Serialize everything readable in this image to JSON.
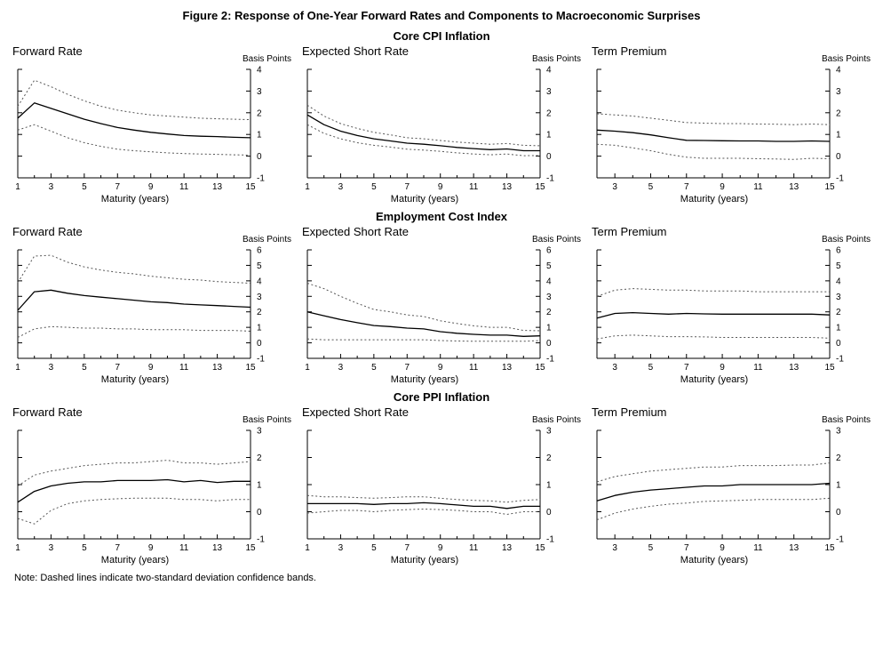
{
  "figure_title": "Figure 2: Response of One-Year Forward Rates and Components to Macroeconomic Surprises",
  "note": "Note: Dashed lines indicate two-standard deviation confidence bands.",
  "rows": [
    {
      "title": "Core CPI Inflation"
    },
    {
      "title": "Employment Cost Index"
    },
    {
      "title": "Core PPI Inflation"
    }
  ],
  "chart_data": [
    {
      "type": "line",
      "group": "Core CPI Inflation",
      "title": "Forward Rate",
      "xlabel": "Maturity (years)",
      "ylabel": "Basis Points",
      "xlim": [
        1,
        15
      ],
      "ylim": [
        -1,
        4
      ],
      "xticks": [
        1,
        3,
        5,
        7,
        9,
        11,
        13,
        15
      ],
      "yticks": [
        -1,
        0,
        1,
        2,
        3,
        4
      ],
      "x": [
        1,
        2,
        3,
        4,
        5,
        6,
        7,
        8,
        9,
        10,
        11,
        12,
        13,
        14,
        15
      ],
      "series": [
        {
          "name": "estimate",
          "style": "solid",
          "values": [
            1.75,
            2.45,
            2.2,
            1.95,
            1.7,
            1.5,
            1.32,
            1.2,
            1.1,
            1.02,
            0.95,
            0.92,
            0.9,
            0.87,
            0.85
          ]
        },
        {
          "name": "upper-confidence-band",
          "style": "dashed",
          "values": [
            2.3,
            3.5,
            3.2,
            2.85,
            2.55,
            2.3,
            2.12,
            2.0,
            1.9,
            1.85,
            1.8,
            1.75,
            1.72,
            1.7,
            1.68
          ]
        },
        {
          "name": "lower-confidence-band",
          "style": "dashed",
          "values": [
            1.2,
            1.45,
            1.15,
            0.85,
            0.62,
            0.45,
            0.32,
            0.25,
            0.2,
            0.15,
            0.12,
            0.1,
            0.08,
            0.06,
            0.05
          ]
        }
      ]
    },
    {
      "type": "line",
      "group": "Core CPI Inflation",
      "title": "Expected Short Rate",
      "xlabel": "Maturity (years)",
      "ylabel": "Basis Points",
      "xlim": [
        1,
        15
      ],
      "ylim": [
        -1,
        4
      ],
      "xticks": [
        1,
        3,
        5,
        7,
        9,
        11,
        13,
        15
      ],
      "yticks": [
        -1,
        0,
        1,
        2,
        3,
        4
      ],
      "x": [
        1,
        2,
        3,
        4,
        5,
        6,
        7,
        8,
        9,
        10,
        11,
        12,
        13,
        14,
        15
      ],
      "series": [
        {
          "name": "estimate",
          "style": "solid",
          "values": [
            1.9,
            1.45,
            1.15,
            0.95,
            0.8,
            0.7,
            0.6,
            0.55,
            0.48,
            0.4,
            0.35,
            0.3,
            0.33,
            0.25,
            0.25
          ]
        },
        {
          "name": "upper-confidence-band",
          "style": "dashed",
          "values": [
            2.35,
            1.85,
            1.5,
            1.28,
            1.1,
            0.98,
            0.85,
            0.8,
            0.72,
            0.65,
            0.6,
            0.55,
            0.58,
            0.5,
            0.48
          ]
        },
        {
          "name": "lower-confidence-band",
          "style": "dashed",
          "values": [
            1.45,
            1.05,
            0.8,
            0.62,
            0.5,
            0.42,
            0.32,
            0.28,
            0.22,
            0.15,
            0.1,
            0.06,
            0.1,
            0.02,
            0.03
          ]
        }
      ]
    },
    {
      "type": "line",
      "group": "Core CPI Inflation",
      "title": "Term Premium",
      "xlabel": "Maturity (years)",
      "ylabel": "Basis Points",
      "xlim": [
        2,
        15
      ],
      "ylim": [
        -1,
        4
      ],
      "xticks": [
        3,
        5,
        7,
        9,
        11,
        13,
        15
      ],
      "yticks": [
        -1,
        0,
        1,
        2,
        3,
        4
      ],
      "x": [
        2,
        3,
        4,
        5,
        6,
        7,
        8,
        9,
        10,
        11,
        12,
        13,
        14,
        15
      ],
      "series": [
        {
          "name": "estimate",
          "style": "solid",
          "values": [
            1.2,
            1.15,
            1.08,
            0.98,
            0.85,
            0.73,
            0.72,
            0.71,
            0.7,
            0.7,
            0.68,
            0.68,
            0.7,
            0.68
          ]
        },
        {
          "name": "upper-confidence-band",
          "style": "dashed",
          "values": [
            1.95,
            1.9,
            1.85,
            1.75,
            1.65,
            1.55,
            1.52,
            1.5,
            1.5,
            1.48,
            1.47,
            1.45,
            1.48,
            1.45
          ]
        },
        {
          "name": "lower-confidence-band",
          "style": "dashed",
          "values": [
            0.55,
            0.5,
            0.38,
            0.25,
            0.08,
            -0.05,
            -0.1,
            -0.1,
            -0.1,
            -0.12,
            -0.13,
            -0.15,
            -0.1,
            -0.12
          ]
        }
      ]
    },
    {
      "type": "line",
      "group": "Employment Cost Index",
      "title": "Forward Rate",
      "xlabel": "Maturity (years)",
      "ylabel": "Basis Points",
      "xlim": [
        1,
        15
      ],
      "ylim": [
        -1,
        6
      ],
      "xticks": [
        1,
        3,
        5,
        7,
        9,
        11,
        13,
        15
      ],
      "yticks": [
        -1,
        0,
        1,
        2,
        3,
        4,
        5,
        6
      ],
      "x": [
        1,
        2,
        3,
        4,
        5,
        6,
        7,
        8,
        9,
        10,
        11,
        12,
        13,
        14,
        15
      ],
      "series": [
        {
          "name": "estimate",
          "style": "solid",
          "values": [
            2.1,
            3.3,
            3.4,
            3.2,
            3.05,
            2.95,
            2.85,
            2.75,
            2.65,
            2.6,
            2.5,
            2.45,
            2.4,
            2.35,
            2.3
          ]
        },
        {
          "name": "upper-confidence-band",
          "style": "dashed",
          "values": [
            3.9,
            5.6,
            5.65,
            5.2,
            4.9,
            4.7,
            4.55,
            4.45,
            4.3,
            4.2,
            4.1,
            4.05,
            3.95,
            3.9,
            3.85
          ]
        },
        {
          "name": "lower-confidence-band",
          "style": "dashed",
          "values": [
            0.35,
            0.9,
            1.05,
            1.0,
            0.95,
            0.95,
            0.9,
            0.9,
            0.85,
            0.85,
            0.85,
            0.8,
            0.8,
            0.8,
            0.75
          ]
        }
      ]
    },
    {
      "type": "line",
      "group": "Employment Cost Index",
      "title": "Expected Short Rate",
      "xlabel": "Maturity (years)",
      "ylabel": "Basis Points",
      "xlim": [
        1,
        15
      ],
      "ylim": [
        -1,
        6
      ],
      "xticks": [
        1,
        3,
        5,
        7,
        9,
        11,
        13,
        15
      ],
      "yticks": [
        -1,
        0,
        1,
        2,
        3,
        4,
        5,
        6
      ],
      "x": [
        1,
        2,
        3,
        4,
        5,
        6,
        7,
        8,
        9,
        10,
        11,
        12,
        13,
        14,
        15
      ],
      "series": [
        {
          "name": "estimate",
          "style": "solid",
          "values": [
            2.0,
            1.75,
            1.5,
            1.3,
            1.12,
            1.05,
            0.95,
            0.9,
            0.72,
            0.62,
            0.55,
            0.5,
            0.5,
            0.42,
            0.45
          ]
        },
        {
          "name": "upper-confidence-band",
          "style": "dashed",
          "values": [
            3.85,
            3.5,
            3.0,
            2.55,
            2.15,
            2.0,
            1.8,
            1.7,
            1.42,
            1.25,
            1.1,
            1.0,
            1.0,
            0.8,
            0.78
          ]
        },
        {
          "name": "lower-confidence-band",
          "style": "dashed",
          "values": [
            0.25,
            0.2,
            0.2,
            0.2,
            0.2,
            0.2,
            0.2,
            0.2,
            0.15,
            0.12,
            0.1,
            0.1,
            0.1,
            0.1,
            0.15
          ]
        }
      ]
    },
    {
      "type": "line",
      "group": "Employment Cost Index",
      "title": "Term Premium",
      "xlabel": "Maturity (years)",
      "ylabel": "Basis Points",
      "xlim": [
        2,
        15
      ],
      "ylim": [
        -1,
        6
      ],
      "xticks": [
        3,
        5,
        7,
        9,
        11,
        13,
        15
      ],
      "yticks": [
        -1,
        0,
        1,
        2,
        3,
        4,
        5,
        6
      ],
      "x": [
        2,
        3,
        4,
        5,
        6,
        7,
        8,
        9,
        10,
        11,
        12,
        13,
        14,
        15
      ],
      "series": [
        {
          "name": "estimate",
          "style": "solid",
          "values": [
            1.6,
            1.9,
            1.95,
            1.9,
            1.85,
            1.9,
            1.87,
            1.85,
            1.85,
            1.85,
            1.85,
            1.85,
            1.85,
            1.8
          ]
        },
        {
          "name": "upper-confidence-band",
          "style": "dashed",
          "values": [
            3.0,
            3.4,
            3.5,
            3.45,
            3.4,
            3.4,
            3.35,
            3.35,
            3.35,
            3.3,
            3.3,
            3.3,
            3.3,
            3.3
          ]
        },
        {
          "name": "lower-confidence-band",
          "style": "dashed",
          "values": [
            0.25,
            0.45,
            0.5,
            0.45,
            0.4,
            0.4,
            0.38,
            0.35,
            0.35,
            0.35,
            0.35,
            0.35,
            0.35,
            0.3
          ]
        }
      ]
    },
    {
      "type": "line",
      "group": "Core PPI Inflation",
      "title": "Forward Rate",
      "xlabel": "Maturity (years)",
      "ylabel": "Basis Points",
      "xlim": [
        1,
        15
      ],
      "ylim": [
        -1,
        3
      ],
      "xticks": [
        1,
        3,
        5,
        7,
        9,
        11,
        13,
        15
      ],
      "yticks": [
        -1,
        0,
        1,
        2,
        3
      ],
      "x": [
        1,
        2,
        3,
        4,
        5,
        6,
        7,
        8,
        9,
        10,
        11,
        12,
        13,
        14,
        15
      ],
      "series": [
        {
          "name": "estimate",
          "style": "solid",
          "values": [
            0.35,
            0.75,
            0.95,
            1.05,
            1.1,
            1.1,
            1.15,
            1.15,
            1.15,
            1.18,
            1.1,
            1.15,
            1.08,
            1.12,
            1.12
          ]
        },
        {
          "name": "upper-confidence-band",
          "style": "dashed",
          "values": [
            0.95,
            1.35,
            1.5,
            1.6,
            1.7,
            1.75,
            1.8,
            1.8,
            1.85,
            1.9,
            1.8,
            1.8,
            1.75,
            1.8,
            1.85
          ]
        },
        {
          "name": "lower-confidence-band",
          "style": "dashed",
          "values": [
            -0.25,
            -0.45,
            0.05,
            0.3,
            0.4,
            0.45,
            0.48,
            0.5,
            0.5,
            0.5,
            0.45,
            0.45,
            0.4,
            0.45,
            0.45
          ]
        }
      ]
    },
    {
      "type": "line",
      "group": "Core PPI Inflation",
      "title": "Expected Short Rate",
      "xlabel": "Maturity (years)",
      "ylabel": "Basis Points",
      "xlim": [
        1,
        15
      ],
      "ylim": [
        -1,
        3
      ],
      "xticks": [
        1,
        3,
        5,
        7,
        9,
        11,
        13,
        15
      ],
      "yticks": [
        -1,
        0,
        1,
        2,
        3
      ],
      "x": [
        1,
        2,
        3,
        4,
        5,
        6,
        7,
        8,
        9,
        10,
        11,
        12,
        13,
        14,
        15
      ],
      "series": [
        {
          "name": "estimate",
          "style": "solid",
          "values": [
            0.3,
            0.3,
            0.3,
            0.3,
            0.27,
            0.3,
            0.3,
            0.33,
            0.3,
            0.25,
            0.2,
            0.2,
            0.12,
            0.2,
            0.2
          ]
        },
        {
          "name": "upper-confidence-band",
          "style": "dashed",
          "values": [
            0.6,
            0.55,
            0.55,
            0.52,
            0.5,
            0.52,
            0.55,
            0.55,
            0.5,
            0.45,
            0.42,
            0.4,
            0.35,
            0.42,
            0.45
          ]
        },
        {
          "name": "lower-confidence-band",
          "style": "dashed",
          "values": [
            -0.05,
            0.0,
            0.05,
            0.05,
            0.0,
            0.05,
            0.08,
            0.1,
            0.08,
            0.05,
            0.0,
            0.0,
            -0.1,
            0.0,
            0.0
          ]
        }
      ]
    },
    {
      "type": "line",
      "group": "Core PPI Inflation",
      "title": "Term Premium",
      "xlabel": "Maturity (years)",
      "ylabel": "Basis Points",
      "xlim": [
        2,
        15
      ],
      "ylim": [
        -1,
        3
      ],
      "xticks": [
        3,
        5,
        7,
        9,
        11,
        13,
        15
      ],
      "yticks": [
        -1,
        0,
        1,
        2,
        3
      ],
      "x": [
        2,
        3,
        4,
        5,
        6,
        7,
        8,
        9,
        10,
        11,
        12,
        13,
        14,
        15
      ],
      "series": [
        {
          "name": "estimate",
          "style": "solid",
          "values": [
            0.4,
            0.6,
            0.72,
            0.8,
            0.85,
            0.9,
            0.95,
            0.95,
            1.0,
            1.0,
            1.0,
            1.0,
            1.0,
            1.05
          ]
        },
        {
          "name": "upper-confidence-band",
          "style": "dashed",
          "values": [
            1.1,
            1.3,
            1.4,
            1.5,
            1.55,
            1.6,
            1.65,
            1.65,
            1.7,
            1.7,
            1.7,
            1.72,
            1.72,
            1.8
          ]
        },
        {
          "name": "lower-confidence-band",
          "style": "dashed",
          "values": [
            -0.3,
            -0.05,
            0.1,
            0.2,
            0.28,
            0.32,
            0.38,
            0.4,
            0.42,
            0.45,
            0.45,
            0.45,
            0.45,
            0.5
          ]
        }
      ]
    }
  ]
}
